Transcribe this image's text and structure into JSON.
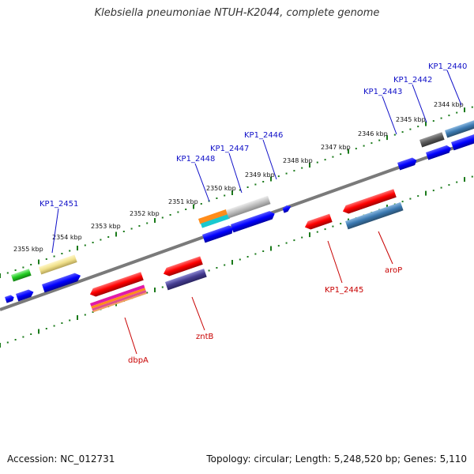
{
  "title": "Klebsiella pneumoniae NTUH-K2044, complete genome",
  "footer": {
    "accession": "Accession: NC_012731",
    "summary": "Topology: circular; Length: 5,248,520 bp; Genes: 5,110"
  },
  "scale_ticks": [
    "2355 kbp",
    "2354 kbp",
    "2353 kbp",
    "2352 kbp",
    "2351 kbp",
    "2350 kbp",
    "2349 kbp",
    "2348 kbp",
    "2347 kbp",
    "2346 kbp",
    "2345 kbp",
    "2344 kbp"
  ],
  "gene_labels": {
    "KP1_2451": "KP1_2451",
    "KP1_2448": "KP1_2448",
    "KP1_2447": "KP1_2447",
    "KP1_2446": "KP1_2446",
    "KP1_2443": "KP1_2443",
    "KP1_2442": "KP1_2442",
    "KP1_2440": "KP1_2440",
    "dbpA": "dbpA",
    "zntB": "zntB",
    "KP1_2445": "KP1_2445",
    "aroP": "aroP"
  },
  "colors": {
    "backbone": "#808080",
    "tick": "#1a7a1a",
    "forward_label": "#1010c8",
    "reverse_label": "#c80000",
    "blue_gene": "#0000ff",
    "red_gene": "#ff0000"
  }
}
